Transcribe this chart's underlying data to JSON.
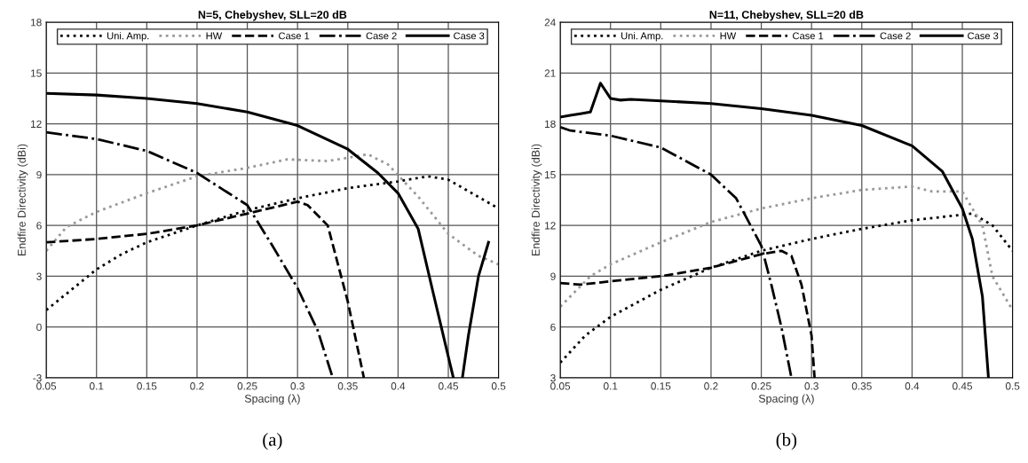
{
  "chart_data": [
    {
      "type": "line",
      "title": "N=5, Chebyshev, SLL=20 dB",
      "xlabel": "Spacing (λ)",
      "ylabel": "Endfire Directivity (dBi)",
      "xlim": [
        0.05,
        0.5
      ],
      "xticks": [
        0.05,
        0.1,
        0.15,
        0.2,
        0.25,
        0.3,
        0.35,
        0.4,
        0.45,
        0.5
      ],
      "ylim": [
        -3,
        18
      ],
      "yticks": [
        -3,
        0,
        3,
        6,
        9,
        12,
        15,
        18
      ],
      "grid": true,
      "legend": "top",
      "annotations": [
        "(a)"
      ],
      "series": [
        {
          "name": "Uni. Amp.",
          "color": "#000000",
          "line_style": "dotted",
          "x": [
            0.05,
            0.075,
            0.1,
            0.125,
            0.15,
            0.2,
            0.25,
            0.3,
            0.35,
            0.4,
            0.43,
            0.45,
            0.5
          ],
          "values": [
            1.0,
            2.2,
            3.4,
            4.3,
            5.0,
            6.0,
            6.9,
            7.6,
            8.2,
            8.6,
            8.9,
            8.7,
            7.0
          ]
        },
        {
          "name": "HW",
          "color": "#999999",
          "line_style": "dotted",
          "x": [
            0.05,
            0.07,
            0.1,
            0.15,
            0.2,
            0.25,
            0.29,
            0.33,
            0.37,
            0.39,
            0.42,
            0.45,
            0.48,
            0.5
          ],
          "values": [
            4.5,
            5.9,
            6.8,
            7.9,
            8.9,
            9.4,
            9.9,
            9.8,
            10.2,
            9.6,
            7.7,
            5.5,
            4.2,
            3.7
          ]
        },
        {
          "name": "Case 1",
          "color": "#000000",
          "line_style": "dashed",
          "x": [
            0.05,
            0.1,
            0.15,
            0.2,
            0.25,
            0.3,
            0.31,
            0.33,
            0.35,
            0.366
          ],
          "values": [
            5.0,
            5.2,
            5.5,
            6.0,
            6.7,
            7.4,
            7.2,
            6.0,
            1.5,
            -3
          ]
        },
        {
          "name": "Case 2",
          "color": "#000000",
          "line_style": "dashdot",
          "x": [
            0.05,
            0.1,
            0.15,
            0.2,
            0.25,
            0.275,
            0.3,
            0.32,
            0.335
          ],
          "values": [
            11.5,
            11.1,
            10.4,
            9.1,
            7.2,
            4.8,
            2.3,
            -0.2,
            -3
          ]
        },
        {
          "name": "Case 3",
          "color": "#000000",
          "line_style": "solid",
          "x": [
            0.05,
            0.1,
            0.15,
            0.2,
            0.25,
            0.3,
            0.35,
            0.38,
            0.4,
            0.42,
            0.435,
            0.455,
            0.46,
            0.464,
            0.47,
            0.48,
            0.49
          ],
          "values": [
            13.8,
            13.7,
            13.5,
            13.2,
            12.7,
            11.9,
            10.5,
            9.1,
            7.9,
            5.8,
            2.0,
            -3,
            null,
            -3,
            -0.5,
            3.0,
            5.0
          ]
        }
      ]
    },
    {
      "type": "line",
      "title": "N=11, Chebyshev, SLL=20 dB",
      "xlabel": "Spacing (λ)",
      "ylabel": "Endfire Directivity (dBi)",
      "xlim": [
        0.05,
        0.5
      ],
      "xticks": [
        0.05,
        0.1,
        0.15,
        0.2,
        0.25,
        0.3,
        0.35,
        0.4,
        0.45,
        0.5
      ],
      "ylim": [
        3,
        24
      ],
      "yticks": [
        3,
        6,
        9,
        12,
        15,
        18,
        21,
        24
      ],
      "grid": true,
      "legend": "top",
      "annotations": [
        "(b)"
      ],
      "series": [
        {
          "name": "Uni. Amp.",
          "color": "#000000",
          "line_style": "dotted",
          "x": [
            0.05,
            0.075,
            0.1,
            0.15,
            0.2,
            0.25,
            0.3,
            0.35,
            0.4,
            0.43,
            0.46,
            0.48,
            0.5
          ],
          "values": [
            3.9,
            5.5,
            6.6,
            8.2,
            9.5,
            10.5,
            11.2,
            11.8,
            12.3,
            12.5,
            12.7,
            12.0,
            10.5
          ]
        },
        {
          "name": "HW",
          "color": "#999999",
          "line_style": "dotted",
          "x": [
            0.05,
            0.08,
            0.1,
            0.15,
            0.2,
            0.25,
            0.3,
            0.35,
            0.4,
            0.42,
            0.45,
            0.47,
            0.48,
            0.5
          ],
          "values": [
            7.2,
            9.0,
            9.7,
            11.0,
            12.2,
            13.0,
            13.6,
            14.1,
            14.3,
            14.0,
            14.0,
            12.0,
            9.0,
            7.0
          ]
        },
        {
          "name": "Case 1",
          "color": "#000000",
          "line_style": "dashed",
          "x": [
            0.05,
            0.07,
            0.1,
            0.15,
            0.2,
            0.25,
            0.27,
            0.28,
            0.29,
            0.3,
            0.303
          ],
          "values": [
            8.6,
            8.5,
            8.7,
            9.0,
            9.5,
            10.3,
            10.5,
            10.2,
            8.5,
            5.5,
            3
          ]
        },
        {
          "name": "Case 2",
          "color": "#000000",
          "line_style": "dashdot",
          "x": [
            0.05,
            0.06,
            0.1,
            0.15,
            0.2,
            0.225,
            0.25,
            0.26,
            0.27,
            0.28
          ],
          "values": [
            17.8,
            17.6,
            17.3,
            16.6,
            15.0,
            13.6,
            10.8,
            8.5,
            6.0,
            3.0
          ]
        },
        {
          "name": "Case 3",
          "color": "#000000",
          "line_style": "solid",
          "x": [
            0.05,
            0.06,
            0.07,
            0.08,
            0.09,
            0.1,
            0.11,
            0.12,
            0.2,
            0.25,
            0.3,
            0.35,
            0.4,
            0.43,
            0.45,
            0.46,
            0.47,
            0.476
          ],
          "values": [
            18.4,
            18.5,
            18.6,
            18.7,
            20.4,
            19.5,
            19.4,
            19.45,
            19.2,
            18.9,
            18.5,
            17.9,
            16.7,
            15.2,
            13.0,
            11.2,
            7.8,
            3
          ]
        }
      ]
    }
  ]
}
